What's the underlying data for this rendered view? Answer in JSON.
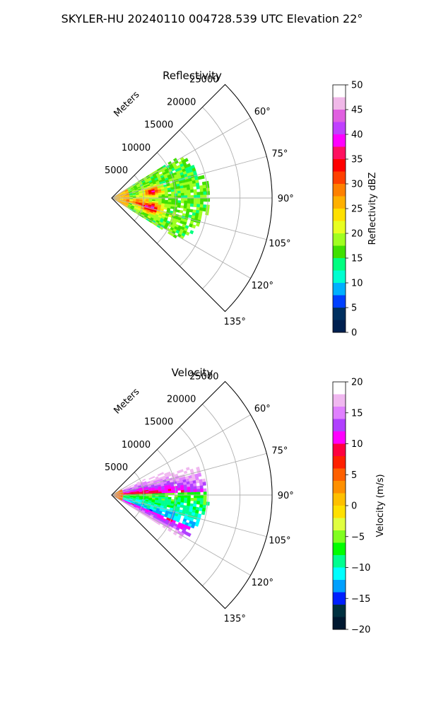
{
  "suptitle": "SKYLER-HU  20240110  004728.539 UTC Elevation 22°",
  "colors": {
    "reflectivity": [
      "#ffffff",
      "#f0b8e8",
      "#e060e0",
      "#c040ff",
      "#ff00ff",
      "#ff1060",
      "#ff0000",
      "#ff4000",
      "#ff8000",
      "#ffb000",
      "#ffe000",
      "#e8ff20",
      "#a0ff20",
      "#40e000",
      "#00ff80",
      "#00ffd0",
      "#00b0ff",
      "#0040ff",
      "#003060",
      "#002050"
    ],
    "velocity": [
      "#ffffff",
      "#f0b8f0",
      "#e080ff",
      "#b040ff",
      "#ff00ff",
      "#ff0040",
      "#ff2000",
      "#ff6000",
      "#ff9000",
      "#ffc000",
      "#ffe000",
      "#e0ff40",
      "#80ff20",
      "#00ff00",
      "#00ff90",
      "#00ffff",
      "#00a0ff",
      "#0020ff",
      "#003040",
      "#001830"
    ]
  },
  "chart_data": [
    {
      "type": "heatmap",
      "subtype": "polar-ppi-sector",
      "title": "Reflectivity",
      "radial_label": "Meters",
      "radial_ticks": [
        5000,
        10000,
        15000,
        20000,
        25000
      ],
      "radial_tick_labels": [
        "5000",
        "10000",
        "15000",
        "20000",
        "25000"
      ],
      "angular_ticks": [
        60,
        75,
        90,
        105,
        120,
        135
      ],
      "angular_tick_labels": [
        "60°",
        "75°",
        "90°",
        "105°",
        "120°",
        "135°"
      ],
      "theta_range_deg": [
        45,
        135
      ],
      "r_max": 25000,
      "grid": true,
      "colorbar": {
        "label": "Reflectivity dBZ",
        "min": 0,
        "max": 50,
        "ticks": [
          0,
          5,
          10,
          15,
          20,
          25,
          30,
          35,
          40,
          45,
          50
        ],
        "tick_labels": [
          "0",
          "5",
          "10",
          "15",
          "20",
          "25",
          "30",
          "35",
          "40",
          "45",
          "50"
        ]
      },
      "field_summary": {
        "data_extent_r_m": [
          0,
          14000
        ],
        "data_extent_theta_deg": [
          58,
          122
        ],
        "dominant_value": 15,
        "max_value": 40,
        "cores": [
          {
            "theta_deg": 80,
            "r_m": 6200,
            "value": 34
          },
          {
            "theta_deg": 103,
            "r_m": 6000,
            "value": 38
          },
          {
            "theta_deg": 100,
            "r_m": 3500,
            "value": 30
          }
        ]
      }
    },
    {
      "type": "heatmap",
      "subtype": "polar-ppi-sector",
      "title": "Velocity",
      "radial_label": "Meters",
      "radial_ticks": [
        5000,
        10000,
        15000,
        20000,
        25000
      ],
      "radial_tick_labels": [
        "5000",
        "10000",
        "15000",
        "20000",
        "25000"
      ],
      "angular_ticks": [
        60,
        75,
        90,
        105,
        120,
        135
      ],
      "angular_tick_labels": [
        "60°",
        "75°",
        "90°",
        "105°",
        "120°",
        "135°"
      ],
      "theta_range_deg": [
        45,
        135
      ],
      "r_max": 25000,
      "grid": true,
      "colorbar": {
        "label": "Velocity (m/s)",
        "min": -20,
        "max": 20,
        "ticks": [
          -20,
          -15,
          -10,
          -5,
          0,
          5,
          10,
          15,
          20
        ],
        "tick_labels": [
          "−20",
          "−15",
          "−10",
          "−5",
          "0",
          "5",
          "10",
          "15",
          "20"
        ]
      },
      "field_summary": {
        "data_extent_r_m": [
          0,
          14000
        ],
        "data_extent_theta_deg": [
          58,
          122
        ],
        "positive_region_theta_deg": [
          58,
          88
        ],
        "negative_region_theta_deg": [
          88,
          122
        ],
        "max_value": 20,
        "min_value": -12
      }
    }
  ]
}
